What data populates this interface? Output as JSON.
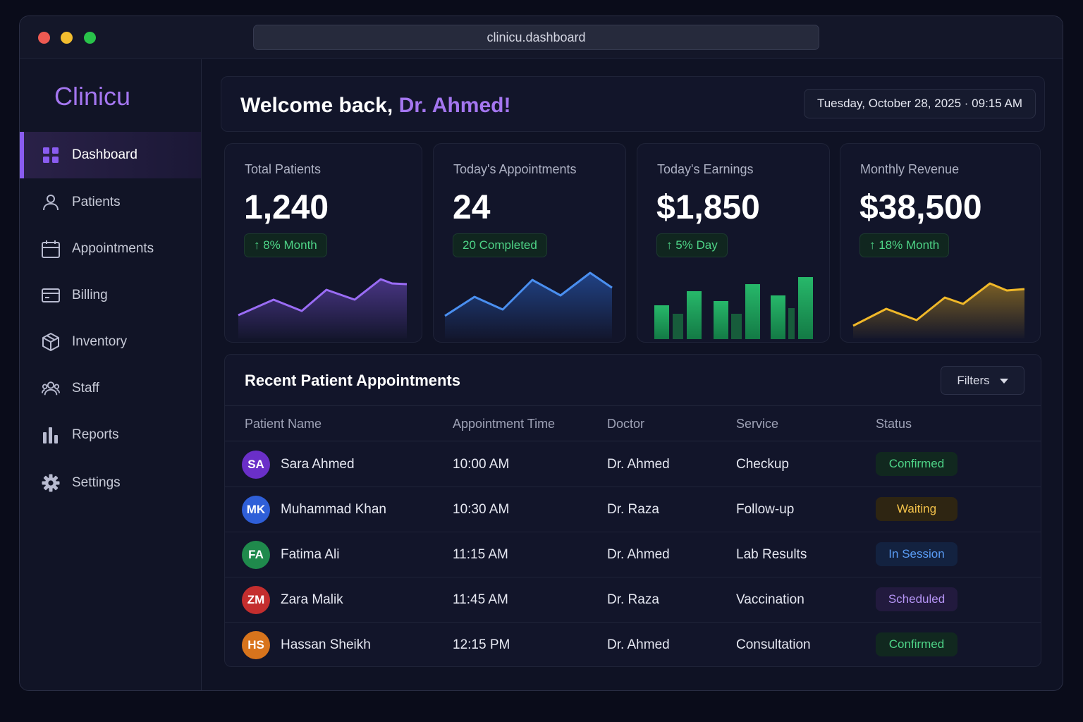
{
  "window": {
    "url": "clinicu.dashboard"
  },
  "sidebar": {
    "brand": "Clinicu",
    "items": [
      {
        "label": "Dashboard",
        "icon": "dashboard-grid-icon",
        "active": true
      },
      {
        "label": "Patients",
        "icon": "user-icon"
      },
      {
        "label": "Appointments",
        "icon": "calendar-icon"
      },
      {
        "label": "Billing",
        "icon": "credit-card-icon"
      },
      {
        "label": "Inventory",
        "icon": "box-icon"
      },
      {
        "label": "Staff",
        "icon": "staff-group-icon"
      },
      {
        "label": "Reports",
        "icon": "bar-chart-icon"
      },
      {
        "label": "Settings",
        "icon": "gear-icon"
      }
    ]
  },
  "header": {
    "welcome_prefix": "Welcome back,",
    "welcome_name": "Dr. Ahmed!",
    "datetime": "Tuesday, October 28, 2025 · 09:15 AM"
  },
  "stats": [
    {
      "title": "Total Patients",
      "value": "1,240",
      "badge": "↑ 8% Month",
      "chart": "line",
      "color": "#8a5cf0"
    },
    {
      "title": "Today's Appointments",
      "value": "24",
      "badge": "20 Completed",
      "chart": "line",
      "color": "#4a8ff0"
    },
    {
      "title": "Today's Earnings",
      "value": "$1,850",
      "badge": "↑ 5% Day",
      "chart": "bar",
      "color": "#22a862"
    },
    {
      "title": "Monthly Revenue",
      "value": "$38,500",
      "badge": "↑ 18% Month",
      "chart": "line",
      "color": "#f0b829"
    }
  ],
  "appointments": {
    "title": "Recent Patient Appointments",
    "filters_label": "Filters",
    "columns": [
      "Patient Name",
      "Appointment Time",
      "Doctor",
      "Service",
      "Status"
    ],
    "rows": [
      {
        "initials": "SA",
        "avatar_color": "#6a2fc8",
        "name": "Sara Ahmed",
        "time": "10:00 AM",
        "doctor": "Dr. Ahmed",
        "service": "Checkup",
        "status": "Confirmed",
        "status_kind": "confirmed"
      },
      {
        "initials": "MK",
        "avatar_color": "#2f5fd8",
        "name": "Muhammad Khan",
        "time": "10:30 AM",
        "doctor": "Dr. Raza",
        "service": "Follow-up",
        "status": "Waiting",
        "status_kind": "waiting"
      },
      {
        "initials": "FA",
        "avatar_color": "#1f8a4c",
        "name": "Fatima Ali",
        "time": "11:15 AM",
        "doctor": "Dr. Ahmed",
        "service": "Lab Results",
        "status": "In Session",
        "status_kind": "session"
      },
      {
        "initials": "ZM",
        "avatar_color": "#c42e2e",
        "name": "Zara Malik",
        "time": "11:45 AM",
        "doctor": "Dr. Raza",
        "service": "Vaccination",
        "status": "Scheduled",
        "status_kind": "scheduled"
      },
      {
        "initials": "HS",
        "avatar_color": "#d8741c",
        "name": "Hassan Sheikh",
        "time": "12:15 PM",
        "doctor": "Dr. Ahmed",
        "service": "Consultation",
        "status": "Confirmed",
        "status_kind": "confirmed"
      }
    ]
  },
  "status_colors": {
    "confirmed": {
      "bg": "#11281f",
      "fg": "#4ed487"
    },
    "waiting": {
      "bg": "#2e2512",
      "fg": "#f2c14a"
    },
    "session": {
      "bg": "#132240",
      "fg": "#5a9cf5"
    },
    "scheduled": {
      "bg": "#221a3e",
      "fg": "#b594f5"
    }
  }
}
